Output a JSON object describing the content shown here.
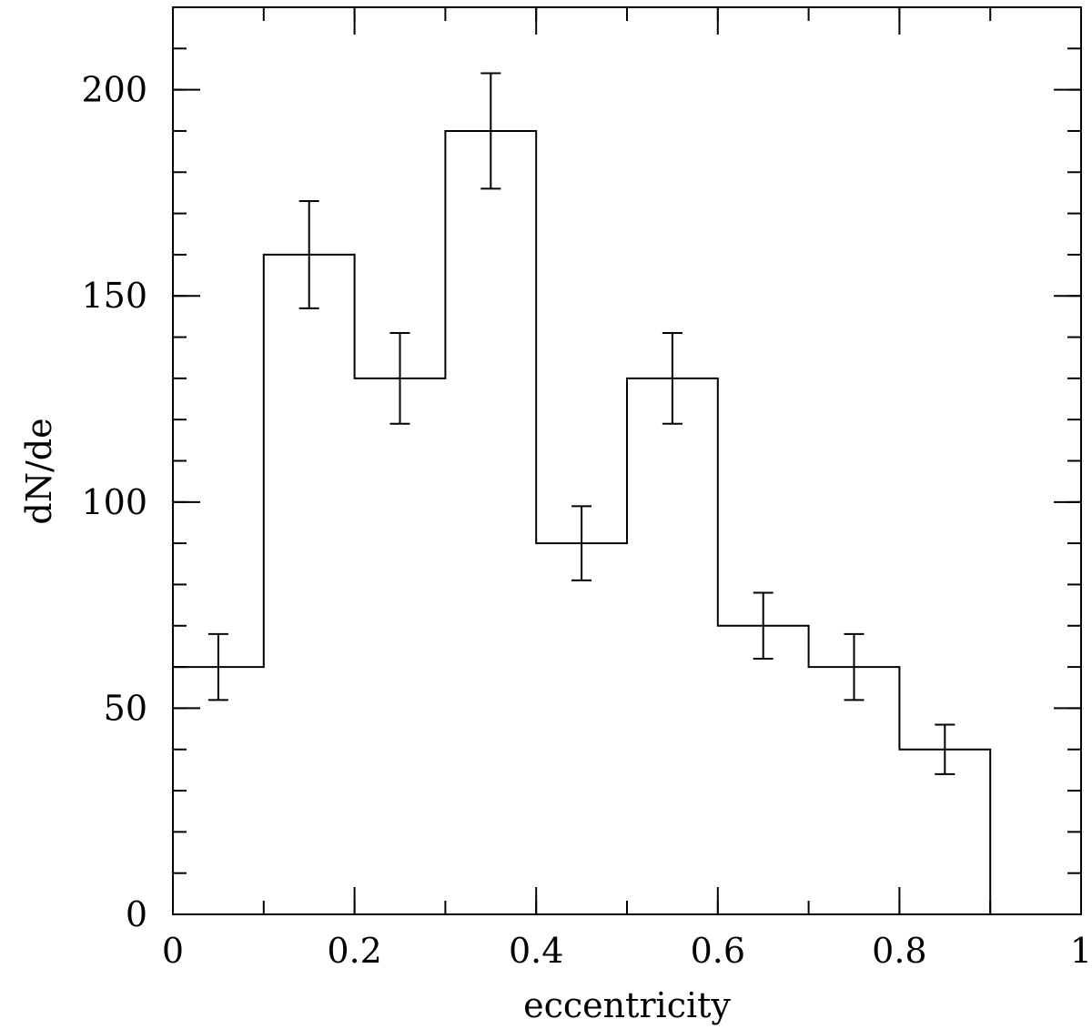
{
  "chart_data": {
    "type": "bar",
    "subtype": "step-histogram-with-error-bars",
    "xlabel": "eccentricity",
    "ylabel": "dN/de",
    "xlim": [
      0,
      1
    ],
    "ylim": [
      0,
      220
    ],
    "x_ticks": [
      {
        "value": 0,
        "label": "0"
      },
      {
        "value": 0.2,
        "label": "0.2"
      },
      {
        "value": 0.4,
        "label": "0.4"
      },
      {
        "value": 0.6,
        "label": "0.6"
      },
      {
        "value": 0.8,
        "label": "0.8"
      },
      {
        "value": 1,
        "label": "1"
      }
    ],
    "x_minor_step": 0.1,
    "y_ticks": [
      {
        "value": 0,
        "label": "0"
      },
      {
        "value": 50,
        "label": "50"
      },
      {
        "value": 100,
        "label": "100"
      },
      {
        "value": 150,
        "label": "150"
      },
      {
        "value": 200,
        "label": "200"
      }
    ],
    "y_minor_step": 10,
    "grid": false,
    "bins": [
      {
        "x0": 0.0,
        "x1": 0.1,
        "value": 60,
        "err_low": 52,
        "err_high": 68
      },
      {
        "x0": 0.1,
        "x1": 0.2,
        "value": 160,
        "err_low": 147,
        "err_high": 173
      },
      {
        "x0": 0.2,
        "x1": 0.3,
        "value": 130,
        "err_low": 119,
        "err_high": 141
      },
      {
        "x0": 0.3,
        "x1": 0.4,
        "value": 190,
        "err_low": 176,
        "err_high": 204
      },
      {
        "x0": 0.4,
        "x1": 0.5,
        "value": 90,
        "err_low": 81,
        "err_high": 99
      },
      {
        "x0": 0.5,
        "x1": 0.6,
        "value": 130,
        "err_low": 119,
        "err_high": 141
      },
      {
        "x0": 0.6,
        "x1": 0.7,
        "value": 70,
        "err_low": 62,
        "err_high": 78
      },
      {
        "x0": 0.7,
        "x1": 0.8,
        "value": 60,
        "err_low": 52,
        "err_high": 68
      },
      {
        "x0": 0.8,
        "x1": 0.9,
        "value": 40,
        "err_low": 34,
        "err_high": 46
      }
    ]
  }
}
